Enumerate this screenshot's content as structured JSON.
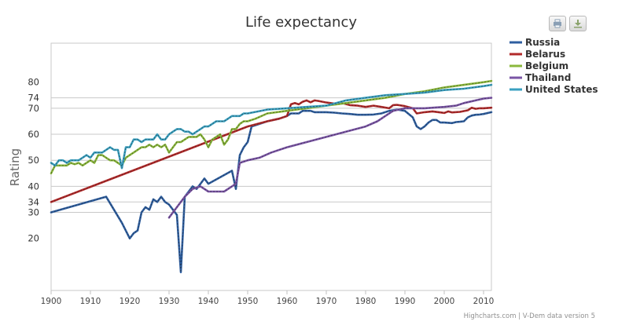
{
  "chart_data": {
    "type": "line",
    "title": "Life expectancy",
    "ylabel": "Rating",
    "xlabel": "",
    "credits": "Highcharts.com | V-Dem data version 5",
    "xlim": [
      1900,
      2012
    ],
    "ylim": [
      0,
      95
    ],
    "x_ticks": [
      1900,
      1910,
      1920,
      1930,
      1940,
      1950,
      1960,
      1970,
      1980,
      1990,
      2000,
      2010
    ],
    "y_ticks": [
      20,
      30,
      34,
      40,
      50,
      60,
      70,
      74,
      80
    ],
    "y_gridlines": [
      30,
      34,
      40,
      50,
      60,
      70,
      74
    ],
    "legend_position": "right",
    "series": [
      {
        "name": "Russia",
        "color": "#2f5fa0",
        "points": [
          [
            1900,
            30
          ],
          [
            1914,
            36
          ],
          [
            1918,
            26
          ],
          [
            1920,
            20
          ],
          [
            1921,
            22
          ],
          [
            1922,
            23
          ],
          [
            1923,
            30
          ],
          [
            1924,
            32
          ],
          [
            1925,
            31
          ],
          [
            1926,
            35
          ],
          [
            1927,
            34
          ],
          [
            1928,
            36
          ],
          [
            1929,
            34
          ],
          [
            1930,
            33
          ],
          [
            1931,
            31
          ],
          [
            1932,
            29
          ],
          [
            1933,
            7
          ],
          [
            1934,
            36
          ],
          [
            1935,
            38
          ],
          [
            1936,
            40
          ],
          [
            1937,
            39
          ],
          [
            1938,
            41
          ],
          [
            1939,
            43
          ],
          [
            1940,
            41
          ],
          [
            1946,
            46
          ],
          [
            1947,
            39
          ],
          [
            1948,
            52
          ],
          [
            1949,
            55
          ],
          [
            1950,
            57
          ],
          [
            1951,
            63
          ],
          [
            1955,
            65
          ],
          [
            1958,
            66
          ],
          [
            1960,
            67
          ],
          [
            1961,
            68
          ],
          [
            1962,
            68
          ],
          [
            1963,
            68
          ],
          [
            1964,
            69
          ],
          [
            1965,
            69
          ],
          [
            1966,
            69
          ],
          [
            1967,
            68.5
          ],
          [
            1968,
            68.5
          ],
          [
            1970,
            68.5
          ],
          [
            1972,
            68.3
          ],
          [
            1974,
            68
          ],
          [
            1976,
            67.8
          ],
          [
            1978,
            67.5
          ],
          [
            1980,
            67.5
          ],
          [
            1982,
            67.6
          ],
          [
            1984,
            68
          ],
          [
            1986,
            69
          ],
          [
            1988,
            69.5
          ],
          [
            1990,
            69
          ],
          [
            1992,
            66.5
          ],
          [
            1993,
            63
          ],
          [
            1994,
            62
          ],
          [
            1995,
            63
          ],
          [
            1996,
            64.5
          ],
          [
            1997,
            65.5
          ],
          [
            1998,
            65.5
          ],
          [
            1999,
            64.5
          ],
          [
            2000,
            64.5
          ],
          [
            2002,
            64.3
          ],
          [
            2003,
            64.7
          ],
          [
            2004,
            64.8
          ],
          [
            2005,
            65
          ],
          [
            2006,
            66.5
          ],
          [
            2007,
            67.2
          ],
          [
            2008,
            67.5
          ],
          [
            2009,
            67.6
          ],
          [
            2010,
            67.8
          ],
          [
            2012,
            68.5
          ]
        ]
      },
      {
        "name": "Belarus",
        "color": "#b22a2a",
        "points": [
          [
            1900,
            34
          ],
          [
            1950,
            63
          ],
          [
            1955,
            65
          ],
          [
            1958,
            66
          ],
          [
            1960,
            67
          ],
          [
            1961,
            71.5
          ],
          [
            1962,
            72
          ],
          [
            1963,
            71.5
          ],
          [
            1964,
            72.5
          ],
          [
            1965,
            73
          ],
          [
            1966,
            72.3
          ],
          [
            1967,
            73
          ],
          [
            1968,
            72.8
          ],
          [
            1969,
            72.5
          ],
          [
            1970,
            72.2
          ],
          [
            1972,
            71.8
          ],
          [
            1974,
            72
          ],
          [
            1976,
            71.2
          ],
          [
            1978,
            71
          ],
          [
            1980,
            70.5
          ],
          [
            1982,
            71
          ],
          [
            1984,
            70.5
          ],
          [
            1986,
            70
          ],
          [
            1987,
            71.2
          ],
          [
            1988,
            71.3
          ],
          [
            1990,
            70.8
          ],
          [
            1992,
            70
          ],
          [
            1993,
            68
          ],
          [
            1995,
            68.5
          ],
          [
            1997,
            68.8
          ],
          [
            1999,
            68.4
          ],
          [
            2000,
            68.2
          ],
          [
            2001,
            68.8
          ],
          [
            2002,
            68.4
          ],
          [
            2004,
            68.6
          ],
          [
            2006,
            69.2
          ],
          [
            2007,
            70.2
          ],
          [
            2008,
            69.8
          ],
          [
            2009,
            70
          ],
          [
            2010,
            70
          ],
          [
            2012,
            70.2
          ]
        ]
      },
      {
        "name": "Belgium",
        "color": "#8bb83c",
        "points": [
          [
            1900,
            45
          ],
          [
            1901,
            48
          ],
          [
            1902,
            48
          ],
          [
            1903,
            48
          ],
          [
            1904,
            48
          ],
          [
            1905,
            49
          ],
          [
            1906,
            48.5
          ],
          [
            1907,
            49
          ],
          [
            1908,
            48
          ],
          [
            1909,
            49
          ],
          [
            1910,
            50
          ],
          [
            1911,
            49
          ],
          [
            1912,
            52
          ],
          [
            1913,
            52
          ],
          [
            1914,
            51
          ],
          [
            1915,
            50
          ],
          [
            1916,
            50
          ],
          [
            1917,
            49
          ],
          [
            1918,
            48
          ],
          [
            1919,
            51
          ],
          [
            1920,
            52
          ],
          [
            1921,
            53
          ],
          [
            1922,
            54
          ],
          [
            1923,
            55
          ],
          [
            1924,
            55
          ],
          [
            1925,
            56
          ],
          [
            1926,
            55
          ],
          [
            1927,
            56
          ],
          [
            1928,
            55
          ],
          [
            1929,
            56
          ],
          [
            1930,
            53
          ],
          [
            1931,
            55
          ],
          [
            1932,
            57
          ],
          [
            1933,
            57
          ],
          [
            1934,
            58
          ],
          [
            1935,
            59
          ],
          [
            1936,
            59
          ],
          [
            1937,
            59
          ],
          [
            1938,
            60
          ],
          [
            1939,
            58
          ],
          [
            1940,
            55
          ],
          [
            1941,
            58
          ],
          [
            1942,
            59
          ],
          [
            1943,
            60
          ],
          [
            1944,
            56
          ],
          [
            1945,
            58
          ],
          [
            1946,
            62
          ],
          [
            1947,
            62
          ],
          [
            1948,
            64
          ],
          [
            1949,
            65
          ],
          [
            1950,
            65
          ],
          [
            1952,
            66
          ],
          [
            1955,
            68
          ],
          [
            1960,
            69
          ],
          [
            1965,
            70
          ],
          [
            1970,
            71
          ],
          [
            1975,
            72
          ],
          [
            1980,
            73
          ],
          [
            1985,
            74
          ],
          [
            1990,
            75.5
          ],
          [
            1995,
            76.5
          ],
          [
            2000,
            78
          ],
          [
            2005,
            79
          ],
          [
            2010,
            80
          ],
          [
            2012,
            80.5
          ]
        ]
      },
      {
        "name": "Thailand",
        "color": "#7a55a5",
        "points": [
          [
            1930,
            28
          ],
          [
            1932,
            32
          ],
          [
            1934,
            36
          ],
          [
            1936,
            39
          ],
          [
            1938,
            40
          ],
          [
            1940,
            38
          ],
          [
            1942,
            38
          ],
          [
            1944,
            38
          ],
          [
            1946,
            40
          ],
          [
            1947,
            41
          ],
          [
            1948,
            49
          ],
          [
            1950,
            50
          ],
          [
            1953,
            51
          ],
          [
            1956,
            53
          ],
          [
            1960,
            55
          ],
          [
            1965,
            57
          ],
          [
            1970,
            59
          ],
          [
            1975,
            61
          ],
          [
            1980,
            63
          ],
          [
            1983,
            65
          ],
          [
            1985,
            67
          ],
          [
            1987,
            69
          ],
          [
            1990,
            70
          ],
          [
            1995,
            70
          ],
          [
            2000,
            70.5
          ],
          [
            2003,
            71
          ],
          [
            2005,
            72
          ],
          [
            2008,
            73
          ],
          [
            2010,
            73.7
          ],
          [
            2012,
            74
          ]
        ]
      },
      {
        "name": "United States",
        "color": "#3aa0c0",
        "points": [
          [
            1900,
            49
          ],
          [
            1901,
            48
          ],
          [
            1902,
            50
          ],
          [
            1903,
            50
          ],
          [
            1904,
            49
          ],
          [
            1905,
            50
          ],
          [
            1906,
            50
          ],
          [
            1907,
            50
          ],
          [
            1908,
            51
          ],
          [
            1909,
            52
          ],
          [
            1910,
            51
          ],
          [
            1911,
            53
          ],
          [
            1912,
            53
          ],
          [
            1913,
            53
          ],
          [
            1914,
            54
          ],
          [
            1915,
            55
          ],
          [
            1916,
            54
          ],
          [
            1917,
            54
          ],
          [
            1918,
            47
          ],
          [
            1919,
            55
          ],
          [
            1920,
            55
          ],
          [
            1921,
            58
          ],
          [
            1922,
            58
          ],
          [
            1923,
            57
          ],
          [
            1924,
            58
          ],
          [
            1925,
            58
          ],
          [
            1926,
            58
          ],
          [
            1927,
            60
          ],
          [
            1928,
            58
          ],
          [
            1929,
            58
          ],
          [
            1930,
            60
          ],
          [
            1931,
            61
          ],
          [
            1932,
            62
          ],
          [
            1933,
            62
          ],
          [
            1934,
            61
          ],
          [
            1935,
            61
          ],
          [
            1936,
            60
          ],
          [
            1937,
            61
          ],
          [
            1938,
            62
          ],
          [
            1939,
            63
          ],
          [
            1940,
            63
          ],
          [
            1941,
            64
          ],
          [
            1942,
            65
          ],
          [
            1943,
            65
          ],
          [
            1944,
            65
          ],
          [
            1945,
            66
          ],
          [
            1946,
            67
          ],
          [
            1947,
            67
          ],
          [
            1948,
            67
          ],
          [
            1949,
            68
          ],
          [
            1950,
            68
          ],
          [
            1955,
            69.5
          ],
          [
            1960,
            70
          ],
          [
            1965,
            70.5
          ],
          [
            1970,
            71
          ],
          [
            1975,
            73
          ],
          [
            1980,
            74
          ],
          [
            1985,
            75
          ],
          [
            1990,
            75.5
          ],
          [
            1995,
            76
          ],
          [
            2000,
            77
          ],
          [
            2005,
            77.5
          ],
          [
            2010,
            78.5
          ],
          [
            2012,
            79
          ]
        ]
      }
    ]
  }
}
